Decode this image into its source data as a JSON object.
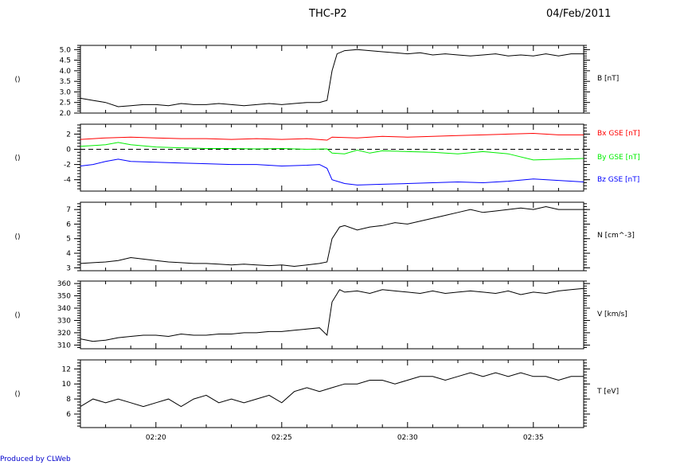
{
  "header": {
    "title": "THC-P2",
    "date": "04/Feb/2011"
  },
  "footer": {
    "credit": "Produced by CLWeb"
  },
  "chart_data": {
    "type": "line",
    "x_axis": {
      "label": "",
      "ticks": [
        "02:20",
        "02:25",
        "02:30",
        "02:35"
      ],
      "tick_minutes": [
        20,
        25,
        30,
        35
      ],
      "range_minutes": [
        17,
        37
      ]
    },
    "panels": [
      {
        "left_label": "()",
        "ylim": [
          2.0,
          5.2
        ],
        "ticks": [
          "2.0",
          "2.5",
          "3.0",
          "3.5",
          "4.0",
          "4.5",
          "5.0"
        ],
        "tick_values": [
          2.0,
          2.5,
          3.0,
          3.5,
          4.0,
          4.5,
          5.0
        ],
        "series": [
          {
            "name": "B [nT]",
            "color": "#000000",
            "x": [
              17,
              17.5,
              18,
              18.5,
              19,
              19.5,
              20,
              20.5,
              21,
              21.5,
              22,
              22.5,
              23,
              23.5,
              24,
              24.5,
              25,
              25.5,
              26,
              26.5,
              26.8,
              27,
              27.2,
              27.5,
              28,
              28.5,
              29,
              29.5,
              30,
              30.5,
              31,
              31.5,
              32,
              32.5,
              33,
              33.5,
              34,
              34.5,
              35,
              35.5,
              36,
              36.5,
              37
            ],
            "y": [
              2.7,
              2.6,
              2.5,
              2.3,
              2.35,
              2.4,
              2.4,
              2.35,
              2.45,
              2.4,
              2.4,
              2.45,
              2.4,
              2.35,
              2.4,
              2.45,
              2.4,
              2.45,
              2.5,
              2.5,
              2.6,
              4.0,
              4.8,
              4.95,
              5.0,
              4.95,
              4.9,
              4.85,
              4.8,
              4.85,
              4.75,
              4.8,
              4.75,
              4.7,
              4.75,
              4.8,
              4.7,
              4.75,
              4.7,
              4.8,
              4.7,
              4.8,
              4.8
            ]
          }
        ]
      },
      {
        "left_label": "()",
        "ylim": [
          -5.5,
          3.3
        ],
        "ticks": [
          "-4",
          "-2",
          "0",
          "2"
        ],
        "tick_values": [
          -4,
          -2,
          0,
          2
        ],
        "zero_line": true,
        "series": [
          {
            "name": "Bx GSE [nT]",
            "color": "#ff0000",
            "x": [
              17,
              18,
              19,
              20,
              21,
              22,
              23,
              24,
              25,
              26,
              26.8,
              27,
              28,
              29,
              30,
              31,
              32,
              33,
              34,
              35,
              36,
              37
            ],
            "y": [
              1.3,
              1.5,
              1.6,
              1.5,
              1.4,
              1.4,
              1.3,
              1.4,
              1.3,
              1.4,
              1.2,
              1.6,
              1.5,
              1.7,
              1.6,
              1.7,
              1.8,
              1.9,
              2.0,
              2.1,
              1.9,
              1.9
            ]
          },
          {
            "name": "By GSE [nT]",
            "color": "#00ee00",
            "x": [
              17,
              18,
              18.5,
              19,
              20,
              21,
              22,
              23,
              24,
              25,
              26,
              26.8,
              27,
              27.5,
              28,
              28.5,
              29,
              30,
              31,
              32,
              33,
              34,
              35,
              36,
              37
            ],
            "y": [
              0.4,
              0.6,
              0.9,
              0.6,
              0.3,
              0.2,
              0.1,
              0.1,
              0.05,
              0.1,
              0.0,
              0.05,
              -0.5,
              -0.6,
              -0.1,
              -0.5,
              -0.2,
              -0.3,
              -0.4,
              -0.6,
              -0.3,
              -0.6,
              -1.4,
              -1.3,
              -1.2
            ]
          },
          {
            "name": "Bz GSE [nT]",
            "color": "#0000ff",
            "x": [
              17,
              17.5,
              18,
              18.5,
              19,
              20,
              21,
              22,
              23,
              24,
              25,
              26,
              26.5,
              26.8,
              27,
              27.5,
              28,
              29,
              30,
              31,
              32,
              33,
              34,
              35,
              36,
              37
            ],
            "y": [
              -2.2,
              -2.0,
              -1.6,
              -1.3,
              -1.6,
              -1.7,
              -1.8,
              -1.9,
              -2.0,
              -2.0,
              -2.2,
              -2.1,
              -2.0,
              -2.5,
              -4.0,
              -4.5,
              -4.7,
              -4.6,
              -4.5,
              -4.4,
              -4.3,
              -4.4,
              -4.2,
              -3.9,
              -4.1,
              -4.3
            ]
          }
        ]
      },
      {
        "left_label": "()",
        "ylim": [
          2.8,
          7.5
        ],
        "ticks": [
          "3",
          "4",
          "5",
          "6",
          "7"
        ],
        "tick_values": [
          3,
          4,
          5,
          6,
          7
        ],
        "series": [
          {
            "name": "N [cm^-3]",
            "color": "#000000",
            "x": [
              17,
              17.5,
              18,
              18.5,
              19,
              19.5,
              20,
              20.5,
              21,
              21.5,
              22,
              22.5,
              23,
              23.5,
              24,
              24.5,
              25,
              25.5,
              26,
              26.5,
              26.8,
              27,
              27.3,
              27.5,
              28,
              28.5,
              29,
              29.5,
              30,
              30.5,
              31,
              31.5,
              32,
              32.5,
              33,
              33.5,
              34,
              34.5,
              35,
              35.5,
              36,
              36.5,
              37
            ],
            "y": [
              3.3,
              3.35,
              3.4,
              3.5,
              3.7,
              3.6,
              3.5,
              3.4,
              3.35,
              3.3,
              3.3,
              3.25,
              3.2,
              3.25,
              3.2,
              3.15,
              3.2,
              3.1,
              3.2,
              3.3,
              3.4,
              5.0,
              5.8,
              5.9,
              5.6,
              5.8,
              5.9,
              6.1,
              6.0,
              6.2,
              6.4,
              6.6,
              6.8,
              7.0,
              6.8,
              6.9,
              7.0,
              7.1,
              7.0,
              7.2,
              7.0,
              7.0,
              7.0
            ]
          }
        ]
      },
      {
        "left_label": "()",
        "ylim": [
          307,
          362
        ],
        "ticks": [
          "310",
          "320",
          "330",
          "340",
          "350",
          "360"
        ],
        "tick_values": [
          310,
          320,
          330,
          340,
          350,
          360
        ],
        "series": [
          {
            "name": "V [km/s]",
            "color": "#000000",
            "x": [
              17,
              17.5,
              18,
              18.5,
              19,
              19.5,
              20,
              20.5,
              21,
              21.5,
              22,
              22.5,
              23,
              23.5,
              24,
              24.5,
              25,
              25.5,
              26,
              26.5,
              26.8,
              27,
              27.3,
              27.5,
              28,
              28.5,
              29,
              29.5,
              30,
              30.5,
              31,
              31.5,
              32,
              32.5,
              33,
              33.5,
              34,
              34.5,
              35,
              35.5,
              36,
              36.5,
              37
            ],
            "y": [
              315,
              313,
              314,
              316,
              317,
              318,
              318,
              317,
              319,
              318,
              318,
              319,
              319,
              320,
              320,
              321,
              321,
              322,
              323,
              324,
              318,
              345,
              355,
              353,
              354,
              352,
              355,
              354,
              353,
              352,
              354,
              352,
              353,
              354,
              353,
              352,
              354,
              351,
              353,
              352,
              354,
              355,
              356
            ]
          }
        ]
      },
      {
        "left_label": "()",
        "ylim": [
          4.2,
          13.2
        ],
        "ticks": [
          "6",
          "8",
          "10",
          "12"
        ],
        "tick_values": [
          6,
          8,
          10,
          12
        ],
        "series": [
          {
            "name": "T [eV]",
            "color": "#000000",
            "x": [
              17,
              17.5,
              18,
              18.5,
              19,
              19.5,
              20,
              20.5,
              21,
              21.5,
              22,
              22.5,
              23,
              23.5,
              24,
              24.5,
              25,
              25.5,
              26,
              26.5,
              27,
              27.5,
              28,
              28.5,
              29,
              29.5,
              30,
              30.5,
              31,
              31.5,
              32,
              32.5,
              33,
              33.5,
              34,
              34.5,
              35,
              35.5,
              36,
              36.5,
              37
            ],
            "y": [
              7,
              8,
              7.5,
              8,
              7.5,
              7,
              7.5,
              8,
              7,
              8,
              8.5,
              7.5,
              8,
              7.5,
              8,
              8.5,
              7.5,
              9,
              9.5,
              9,
              9.5,
              10,
              10,
              10.5,
              10.5,
              10,
              10.5,
              11,
              11,
              10.5,
              11,
              11.5,
              11,
              11.5,
              11,
              11.5,
              11,
              11,
              10.5,
              11,
              11
            ]
          }
        ]
      }
    ]
  }
}
